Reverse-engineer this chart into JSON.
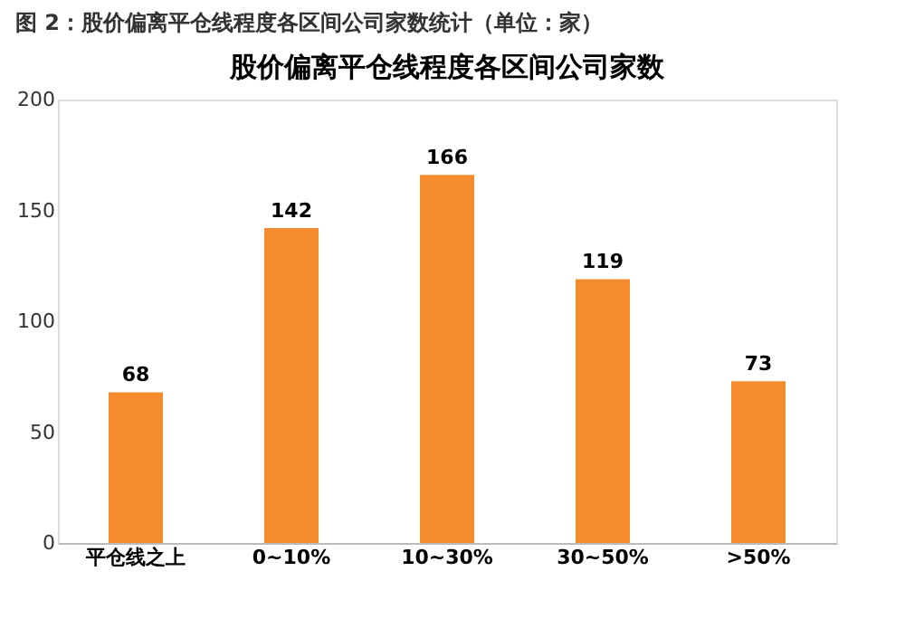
{
  "chart_data": {
    "type": "bar",
    "title": "图 2：股价偏离平仓线程度各区间公司家数统计（单位：家）",
    "subtitle": "股价偏离平仓线程度各区间公司家数",
    "categories": [
      "平仓线之上",
      "0~10%",
      "10~30%",
      "30~50%",
      ">50%"
    ],
    "values": [
      68,
      142,
      166,
      119,
      73
    ],
    "color": "#f58b2f",
    "ylim": [
      0,
      200
    ],
    "yticks": [
      0,
      50,
      100,
      150,
      200
    ],
    "grid": false,
    "data_labels": true
  }
}
